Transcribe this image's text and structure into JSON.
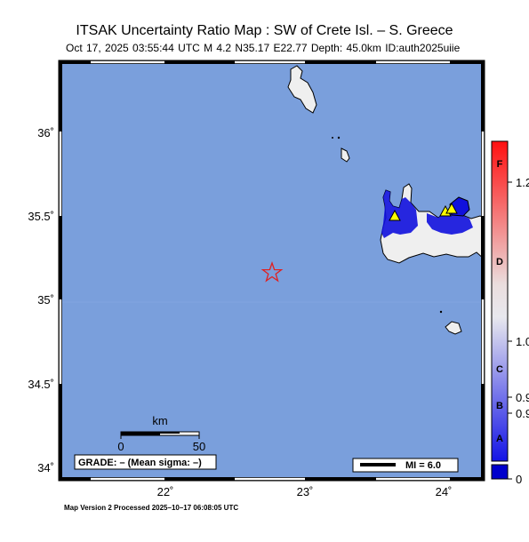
{
  "header": {
    "title": "ITSAK Uncertainty Ratio Map : SW of Crete Isl. – S. Greece",
    "subtitle": "Oct 17, 2025 03:55:44 UTC    M 4.2    N35.17 E22.77    Depth: 45.0km    ID:auth2025uiie"
  },
  "axes": {
    "lat_ticks": [
      "36˚",
      "35.5˚",
      "35˚",
      "34.5˚",
      "34˚"
    ],
    "lon_ticks": [
      "22˚",
      "23˚",
      "24˚"
    ]
  },
  "scale_bar": {
    "title": "km",
    "zero": "0",
    "fifty": "50"
  },
  "grade_box": {
    "text": "GRADE: – (Mean sigma: –)"
  },
  "mi_legend": {
    "text": "MI = 6.0"
  },
  "colorbar": {
    "letters": [
      "F",
      "D",
      "C",
      "B",
      "A"
    ],
    "values": [
      "1.2",
      "1.0",
      "0.9",
      "0.9",
      "0"
    ]
  },
  "footer": {
    "text": "Map Version 2 Processed 2025–10–17 06:08:05 UTC"
  },
  "colors": {
    "sea": "#7a9fdc",
    "land": "#efefef",
    "epicenter": "#e02020",
    "station": "#ffff00",
    "uncertainty": "#1010dd"
  },
  "epicenter": {
    "lat": 35.17,
    "lon": 22.77
  }
}
